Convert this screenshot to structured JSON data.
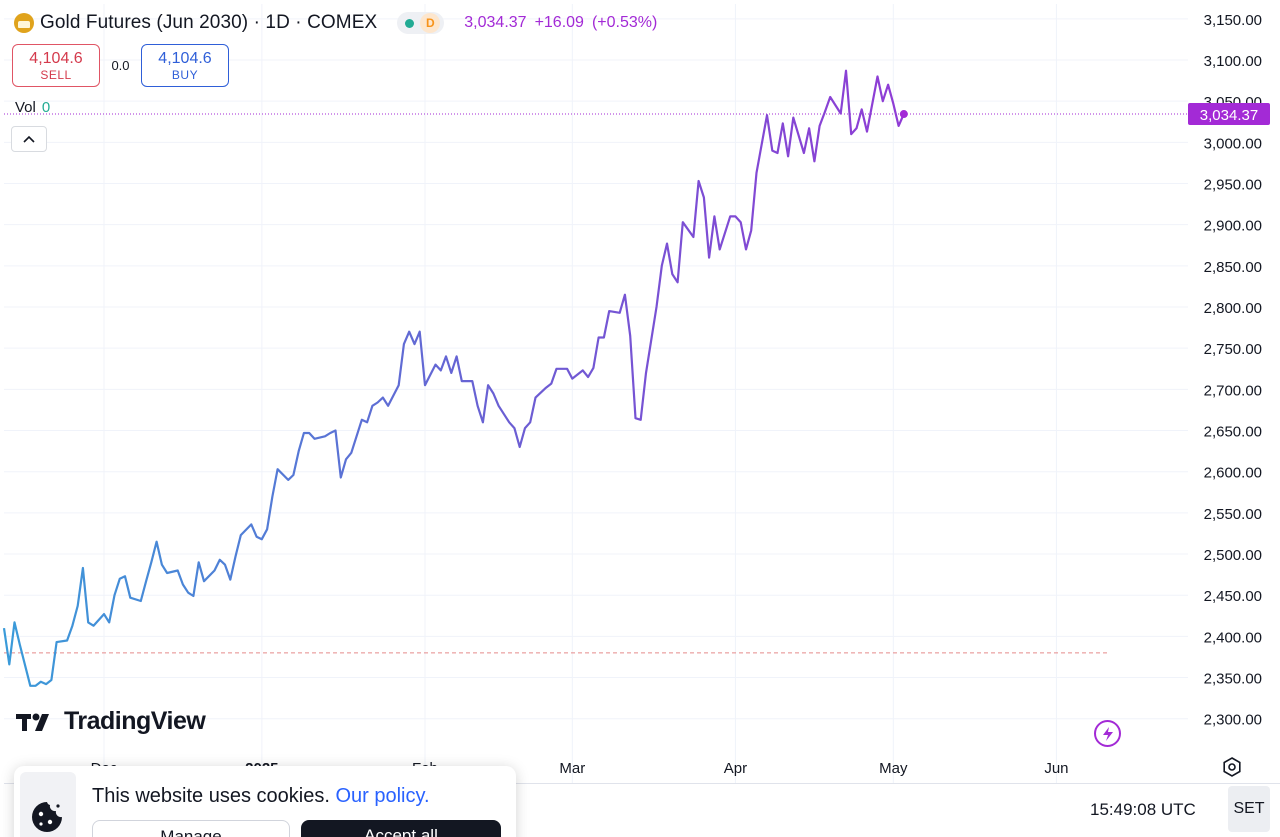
{
  "header": {
    "symbol_title": "Gold Futures (Jun 2030) · 1D · COMEX",
    "interval_badge": "D",
    "last_price": "3,034.37",
    "change": "+16.09",
    "change_pct": "(+0.53%)",
    "logo_icon": "gold-bars-icon"
  },
  "trade": {
    "sell_price": "4,104.6",
    "sell_label": "SELL",
    "spread": "0.0",
    "buy_price": "4,104.6",
    "buy_label": "BUY"
  },
  "volume": {
    "label": "Vol",
    "value": "0"
  },
  "branding": {
    "wordmark": "TradingView"
  },
  "status_bar": {
    "time": "15:49:08 UTC",
    "set_label": "SET"
  },
  "cookie_banner": {
    "text": "This website uses cookies.",
    "link": "Our policy.",
    "manage_label": "Manage",
    "accept_label": "Accept all"
  },
  "colors": {
    "line_start": "#3a9bd9",
    "line_mid": "#6a5fd3",
    "line_end": "#a32ad6",
    "price_label_bg": "#a32ad6",
    "baseline": "#e58a8a",
    "baseline_alt": "#5ccab3"
  },
  "chart_data": {
    "type": "line",
    "ylim": [
      2262,
      3168
    ],
    "y_ticks": [
      2300,
      2350,
      2400,
      2450,
      2500,
      2550,
      2600,
      2650,
      2700,
      2750,
      2800,
      2850,
      2900,
      2950,
      3000,
      3050,
      3100,
      3150
    ],
    "y_tick_labels": [
      "2,300.00",
      "2,350.00",
      "2,400.00",
      "2,450.00",
      "2,500.00",
      "2,550.00",
      "2,600.00",
      "2,650.00",
      "2,700.00",
      "2,750.00",
      "2,800.00",
      "2,850.00",
      "2,900.00",
      "2,950.00",
      "3,000.00",
      "3,050.00",
      "3,100.00",
      "3,150.00"
    ],
    "x_range": [
      "2024-11-13",
      "2025-06-26"
    ],
    "x_ticks": [
      {
        "date": "2024-12-02",
        "label": "Dec"
      },
      {
        "date": "2025-01-01",
        "label": "2025"
      },
      {
        "date": "2025-02-01",
        "label": "Feb"
      },
      {
        "date": "2025-03-01",
        "label": "Mar"
      },
      {
        "date": "2025-04-01",
        "label": "Apr"
      },
      {
        "date": "2025-05-01",
        "label": "May"
      },
      {
        "date": "2025-06-01",
        "label": "Jun"
      }
    ],
    "current_price": 3034.37,
    "current_price_label": "3,034.37",
    "baseline_price": 2380,
    "grid": true,
    "series": [
      {
        "points": [
          [
            "2024-11-13",
            2410
          ],
          [
            "2024-11-14",
            2366
          ],
          [
            "2024-11-15",
            2417
          ],
          [
            "2024-11-16",
            2390
          ],
          [
            "2024-11-18",
            2340
          ],
          [
            "2024-11-19",
            2340
          ],
          [
            "2024-11-20",
            2345
          ],
          [
            "2024-11-21",
            2342
          ],
          [
            "2024-11-22",
            2347
          ],
          [
            "2024-11-23",
            2393
          ],
          [
            "2024-11-25",
            2395
          ],
          [
            "2024-11-26",
            2413
          ],
          [
            "2024-11-27",
            2437
          ],
          [
            "2024-11-28",
            2483
          ],
          [
            "2024-11-29",
            2417
          ],
          [
            "2024-11-30",
            2413
          ],
          [
            "2024-12-02",
            2427
          ],
          [
            "2024-12-03",
            2417
          ],
          [
            "2024-12-04",
            2450
          ],
          [
            "2024-12-05",
            2470
          ],
          [
            "2024-12-06",
            2473
          ],
          [
            "2024-12-07",
            2447
          ],
          [
            "2024-12-09",
            2443
          ],
          [
            "2024-12-10",
            2467
          ],
          [
            "2024-12-11",
            2490
          ],
          [
            "2024-12-12",
            2515
          ],
          [
            "2024-12-13",
            2487
          ],
          [
            "2024-12-14",
            2477
          ],
          [
            "2024-12-16",
            2480
          ],
          [
            "2024-12-17",
            2463
          ],
          [
            "2024-12-18",
            2453
          ],
          [
            "2024-12-19",
            2449
          ],
          [
            "2024-12-20",
            2490
          ],
          [
            "2024-12-21",
            2467
          ],
          [
            "2024-12-23",
            2480
          ],
          [
            "2024-12-24",
            2493
          ],
          [
            "2024-12-25",
            2487
          ],
          [
            "2024-12-26",
            2469
          ],
          [
            "2024-12-27",
            2497
          ],
          [
            "2024-12-28",
            2523
          ],
          [
            "2024-12-30",
            2536
          ],
          [
            "2024-12-31",
            2521
          ],
          [
            "2025-01-01",
            2518
          ],
          [
            "2025-01-02",
            2530
          ],
          [
            "2025-01-03",
            2570
          ],
          [
            "2025-01-04",
            2603
          ],
          [
            "2025-01-06",
            2590
          ],
          [
            "2025-01-07",
            2596
          ],
          [
            "2025-01-08",
            2625
          ],
          [
            "2025-01-09",
            2647
          ],
          [
            "2025-01-10",
            2647
          ],
          [
            "2025-01-11",
            2640
          ],
          [
            "2025-01-13",
            2643
          ],
          [
            "2025-01-14",
            2647
          ],
          [
            "2025-01-15",
            2650
          ],
          [
            "2025-01-16",
            2593
          ],
          [
            "2025-01-17",
            2615
          ],
          [
            "2025-01-18",
            2623
          ],
          [
            "2025-01-20",
            2663
          ],
          [
            "2025-01-21",
            2660
          ],
          [
            "2025-01-22",
            2680
          ],
          [
            "2025-01-23",
            2684
          ],
          [
            "2025-01-24",
            2690
          ],
          [
            "2025-01-25",
            2680
          ],
          [
            "2025-01-27",
            2705
          ],
          [
            "2025-01-28",
            2755
          ],
          [
            "2025-01-29",
            2770
          ],
          [
            "2025-01-30",
            2755
          ],
          [
            "2025-01-31",
            2770
          ],
          [
            "2025-02-01",
            2705
          ],
          [
            "2025-02-03",
            2730
          ],
          [
            "2025-02-04",
            2723
          ],
          [
            "2025-02-05",
            2740
          ],
          [
            "2025-02-06",
            2720
          ],
          [
            "2025-02-07",
            2740
          ],
          [
            "2025-02-08",
            2710
          ],
          [
            "2025-02-10",
            2710
          ],
          [
            "2025-02-11",
            2680
          ],
          [
            "2025-02-12",
            2660
          ],
          [
            "2025-02-13",
            2705
          ],
          [
            "2025-02-14",
            2695
          ],
          [
            "2025-02-15",
            2680
          ],
          [
            "2025-02-17",
            2660
          ],
          [
            "2025-02-18",
            2653
          ],
          [
            "2025-02-19",
            2630
          ],
          [
            "2025-02-20",
            2653
          ],
          [
            "2025-02-21",
            2660
          ],
          [
            "2025-02-22",
            2690
          ],
          [
            "2025-02-24",
            2702
          ],
          [
            "2025-02-25",
            2707
          ],
          [
            "2025-02-26",
            2725
          ],
          [
            "2025-02-27",
            2725
          ],
          [
            "2025-02-28",
            2725
          ],
          [
            "2025-03-01",
            2713
          ],
          [
            "2025-03-03",
            2723
          ],
          [
            "2025-03-04",
            2715
          ],
          [
            "2025-03-05",
            2726
          ],
          [
            "2025-03-06",
            2763
          ],
          [
            "2025-03-07",
            2763
          ],
          [
            "2025-03-08",
            2795
          ],
          [
            "2025-03-10",
            2793
          ],
          [
            "2025-03-11",
            2815
          ],
          [
            "2025-03-12",
            2765
          ],
          [
            "2025-03-13",
            2665
          ],
          [
            "2025-03-14",
            2663
          ],
          [
            "2025-03-15",
            2720
          ],
          [
            "2025-03-17",
            2800
          ],
          [
            "2025-03-18",
            2850
          ],
          [
            "2025-03-19",
            2877
          ],
          [
            "2025-03-20",
            2840
          ],
          [
            "2025-03-21",
            2830
          ],
          [
            "2025-03-22",
            2903
          ],
          [
            "2025-03-24",
            2885
          ],
          [
            "2025-03-25",
            2953
          ],
          [
            "2025-03-26",
            2933
          ],
          [
            "2025-03-27",
            2860
          ],
          [
            "2025-03-28",
            2910
          ],
          [
            "2025-03-29",
            2870
          ],
          [
            "2025-03-31",
            2910
          ],
          [
            "2025-04-01",
            2910
          ],
          [
            "2025-04-02",
            2903
          ],
          [
            "2025-04-03",
            2870
          ],
          [
            "2025-04-04",
            2893
          ],
          [
            "2025-04-05",
            2963
          ],
          [
            "2025-04-07",
            3033
          ],
          [
            "2025-04-08",
            2990
          ],
          [
            "2025-04-09",
            2987
          ],
          [
            "2025-04-10",
            3023
          ],
          [
            "2025-04-11",
            2983
          ],
          [
            "2025-04-12",
            3030
          ],
          [
            "2025-04-14",
            2987
          ],
          [
            "2025-04-15",
            3017
          ],
          [
            "2025-04-16",
            2977
          ],
          [
            "2025-04-17",
            3020
          ],
          [
            "2025-04-18",
            3037
          ],
          [
            "2025-04-19",
            3055
          ],
          [
            "2025-04-21",
            3035
          ],
          [
            "2025-04-22",
            3087
          ],
          [
            "2025-04-23",
            3010
          ],
          [
            "2025-04-24",
            3017
          ],
          [
            "2025-04-25",
            3040
          ],
          [
            "2025-04-26",
            3013
          ],
          [
            "2025-04-28",
            3080
          ],
          [
            "2025-04-29",
            3050
          ],
          [
            "2025-04-30",
            3070
          ],
          [
            "2025-05-01",
            3047
          ],
          [
            "2025-05-02",
            3020
          ],
          [
            "2025-05-03",
            3034.37
          ]
        ]
      }
    ]
  }
}
